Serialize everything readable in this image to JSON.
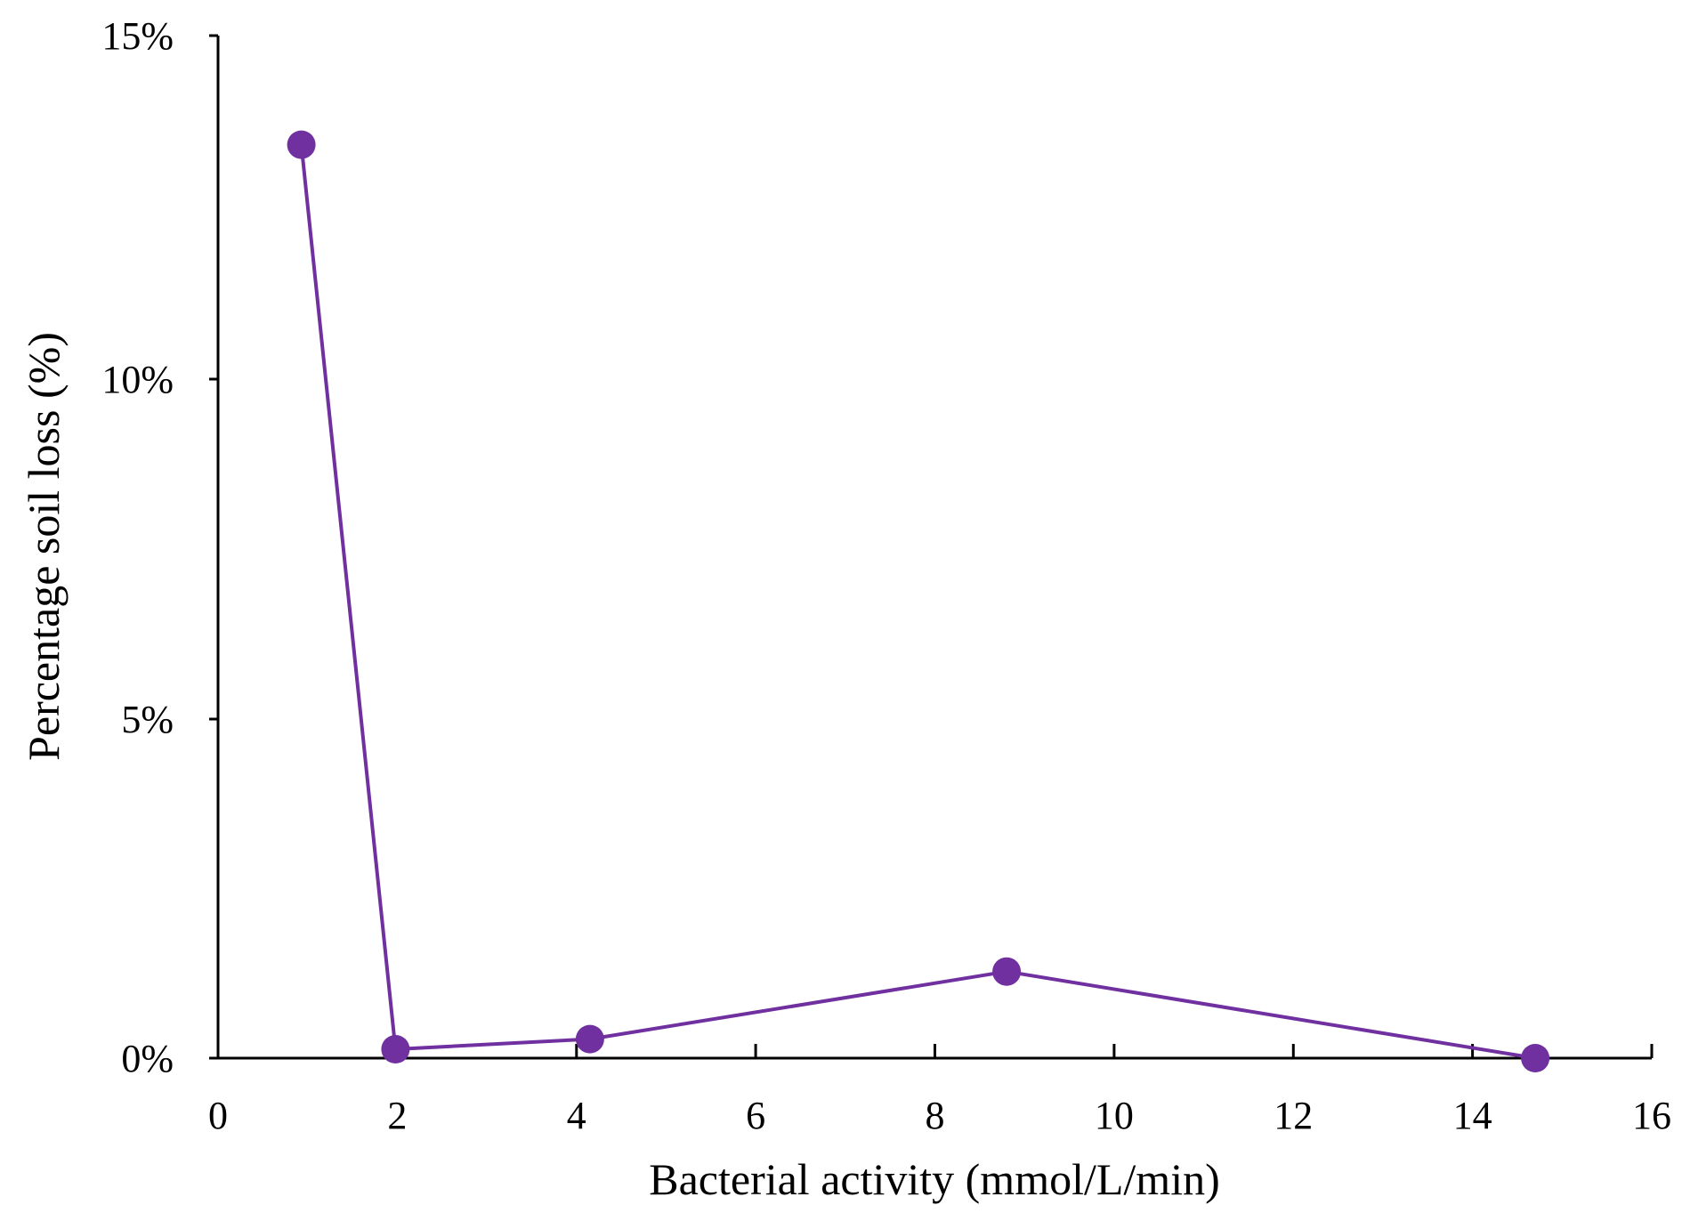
{
  "chart_data": {
    "type": "line",
    "title": "",
    "xlabel": "Bacterial activity (mmol/L/min)",
    "ylabel": "Percentage soil loss (%)",
    "xlim": [
      0,
      16
    ],
    "ylim": [
      0,
      15
    ],
    "x_ticks": [
      0,
      2,
      4,
      6,
      8,
      10,
      12,
      14,
      16
    ],
    "x_tick_labels": [
      "0",
      "2",
      "4",
      "6",
      "8",
      "10",
      "12",
      "14",
      "16"
    ],
    "y_ticks": [
      0,
      5,
      10,
      15
    ],
    "y_tick_labels": [
      "0%",
      "5%",
      "10%",
      "15%"
    ],
    "grid": false,
    "legend": "none",
    "series": [
      {
        "color": "#7030A0",
        "marker": "circle",
        "points": [
          {
            "x": 0.93,
            "y": 13.4
          },
          {
            "x": 1.98,
            "y": 0.13
          },
          {
            "x": 4.15,
            "y": 0.28
          },
          {
            "x": 8.8,
            "y": 1.27
          },
          {
            "x": 14.7,
            "y": 0.0
          }
        ]
      }
    ]
  }
}
